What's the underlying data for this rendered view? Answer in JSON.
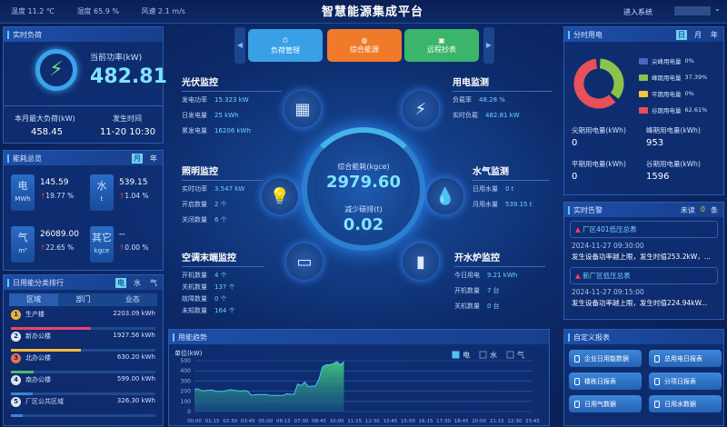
{
  "header": {
    "title": "智慧能源集成平台",
    "weather": [
      "温度 11.2 ℃",
      "湿度 65.9 %",
      "风速 2.1 m/s"
    ],
    "enter": "进入系统",
    "user_chevron": "⌄"
  },
  "realtime_load": {
    "title": "实时负荷",
    "power_label": "当前功率(kW)",
    "power": "482.81",
    "max_label": "本月最大负荷(kW)",
    "max": "458.45",
    "time_label": "发生时间",
    "time": "11-20 10:30"
  },
  "overview": {
    "title": "能耗总览",
    "toggle": [
      "月",
      "年"
    ],
    "items": [
      {
        "name": "电",
        "unit": "MWh",
        "value": "145.59",
        "change": "19.77 %"
      },
      {
        "name": "水",
        "unit": "t",
        "value": "539.15",
        "change": "1.04 %"
      },
      {
        "name": "气",
        "unit": "m³",
        "value": "26089.00",
        "change": "22.65 %"
      },
      {
        "name": "其它",
        "unit": "kgce",
        "value": "--",
        "change": "0.00 %"
      }
    ]
  },
  "ranking": {
    "title": "日用能分类排行",
    "toggle": [
      "电",
      "水",
      "气"
    ],
    "tabs": [
      "区域",
      "部门",
      "业态"
    ],
    "items": [
      {
        "rank": "1",
        "name": "生产楼",
        "value": "2203.09 kWh",
        "num": 2203.09,
        "color": "#e8456a",
        "medal": "#f2b233"
      },
      {
        "rank": "2",
        "name": "新办公楼",
        "value": "1927.56 kWh",
        "num": 1927.56,
        "color": "#f5b83a",
        "medal": "#dfe6f2"
      },
      {
        "rank": "3",
        "name": "北办公楼",
        "value": "630.20 kWh",
        "num": 630.2,
        "color": "#52b86a",
        "medal": "#e8704a"
      },
      {
        "rank": "4",
        "name": "南办公楼",
        "value": "599.00 kWh",
        "num": 599.0,
        "color": "#3b86d8",
        "medal": "#dfe6f2"
      },
      {
        "rank": "5",
        "name": "厂区公共区域",
        "value": "326.30 kWh",
        "num": 326.3,
        "color": "#3b86d8",
        "medal": "#dfe6f2"
      }
    ]
  },
  "nav": {
    "buttons": [
      {
        "label": "负荷管理",
        "color": "#3aa0e6",
        "icon": "⏲"
      },
      {
        "label": "综合能源",
        "color": "#f07a2a",
        "icon": "◍"
      },
      {
        "label": "远程抄表",
        "color": "#3bb56a",
        "icon": "▣"
      }
    ],
    "prev": "◀",
    "next": "▶"
  },
  "pv": {
    "title": "光伏监控",
    "rows": [
      [
        "发电功率",
        "15.323 kW"
      ],
      [
        "日发电量",
        "25 kWh"
      ],
      [
        "累发电量",
        "16206 kWh"
      ]
    ]
  },
  "power_mon": {
    "title": "用电监测",
    "rows": [
      [
        "负载率",
        "48.28 %"
      ],
      [
        "实时负载",
        "482.81 kW"
      ]
    ]
  },
  "lighting": {
    "title": "照明监控",
    "rows": [
      [
        "实时功率",
        "3.547 kW"
      ],
      [
        "开启数量",
        "2 个"
      ],
      [
        "关闭数量",
        "6 个"
      ]
    ]
  },
  "water": {
    "title": "水气监测",
    "rows": [
      [
        "日用水量",
        "0 t"
      ],
      [
        "月用水量",
        "539.15 t"
      ]
    ]
  },
  "ac": {
    "title": "空调末端监控",
    "rows": [
      [
        "开机数量",
        "4 个"
      ],
      [
        "关机数量",
        "137 个"
      ],
      [
        "故障数量",
        "0 个"
      ],
      [
        "未知数量",
        "164 个"
      ]
    ]
  },
  "boiler": {
    "title": "开水炉监控",
    "rows": [
      [
        "今日用电",
        "9.21 kWh"
      ],
      [
        "开机数量",
        "7 台"
      ],
      [
        "关机数量",
        "0 台"
      ]
    ]
  },
  "center": {
    "energy_label": "综合能耗(kgce)",
    "energy": "2979.60",
    "carbon_label": "减少碳排(t)",
    "carbon": "0.02"
  },
  "tou": {
    "title": "分时用电",
    "toggle": [
      "日",
      "月",
      "年"
    ],
    "legend": [
      {
        "label": "尖峰用电量",
        "pct": "0%",
        "value": 0,
        "color": "#4a64c8"
      },
      {
        "label": "峰期用电量",
        "pct": "37.39%",
        "value": 37.39,
        "color": "#8bc34a"
      },
      {
        "label": "平期用电量",
        "pct": "0%",
        "value": 0,
        "color": "#f5c242"
      },
      {
        "label": "谷期用电量",
        "pct": "62.61%",
        "value": 62.61,
        "color": "#e8505a"
      }
    ],
    "stats": [
      [
        "尖期用电量(kWh)",
        "0"
      ],
      [
        "峰期用电量(kWh)",
        "953"
      ],
      [
        "平期用电量(kWh)",
        "0"
      ],
      [
        "谷期用电量(kWh)",
        "1596"
      ]
    ]
  },
  "alarms": {
    "title": "实时告警",
    "unread_label": "未读",
    "unread": "0",
    "unit": "条",
    "items": [
      {
        "name": "厂区401低压总表",
        "time": "2024-11-27 09:30:00",
        "msg": "发生设备功率越上限，发生时值253.2kW，..."
      },
      {
        "name": "新厂区低压总表",
        "time": "2024-11-27 09:15:00",
        "msg": "发生设备功率越上限，发生时值224.94kW..."
      }
    ]
  },
  "reports": {
    "title": "自定义报表",
    "buttons": [
      "企业日用能数据",
      "总用电日报表",
      "楼栋日报表",
      "分项日报表",
      "日用气数据",
      "日用水数据"
    ]
  },
  "chart_data": {
    "type": "area",
    "title": "用能趋势",
    "ylabel": "单位(kW)",
    "ylim": [
      0,
      500
    ],
    "yticks": [
      0,
      100,
      200,
      300,
      400,
      500
    ],
    "xticks": [
      "00:00",
      "01:15",
      "02:30",
      "03:45",
      "05:00",
      "06:15",
      "07:30",
      "08:45",
      "10:00",
      "11:15",
      "12:30",
      "13:45",
      "15:00",
      "16:15",
      "17:30",
      "18:45",
      "20:00",
      "21:15",
      "22:30",
      "23:45"
    ],
    "legend": [
      {
        "label": "电",
        "checked": true
      },
      {
        "label": "水",
        "checked": false
      },
      {
        "label": "气",
        "checked": false
      }
    ],
    "series": [
      {
        "name": "电",
        "color": "#4fc3f7",
        "x_step_minutes": 15,
        "values": [
          220,
          222,
          205,
          205,
          210,
          212,
          200,
          198,
          200,
          205,
          215,
          210,
          205,
          202,
          205,
          200,
          160,
          165,
          168,
          165,
          168,
          160,
          158,
          158,
          158,
          160,
          175,
          170,
          170,
          270,
          255,
          290,
          245,
          250,
          250,
          320,
          440,
          460,
          460,
          470,
          490,
          460,
          490
        ]
      }
    ]
  }
}
